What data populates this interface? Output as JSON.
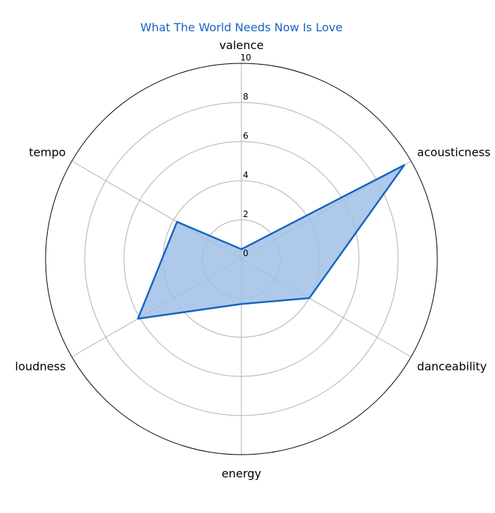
{
  "chart_data": {
    "type": "radar",
    "title": "What The World Needs Now Is Love",
    "axes": [
      "valence",
      "acousticness",
      "danceability",
      "energy",
      "loudness",
      "tempo"
    ],
    "series": [
      {
        "values": [
          0.5,
          9.6,
          4.0,
          2.3,
          6.1,
          3.8
        ]
      }
    ],
    "rlim": [
      0,
      10
    ],
    "rticks": [
      "0",
      "2",
      "4",
      "6",
      "8",
      "10"
    ],
    "grid": true,
    "colors": {
      "line": "#1565c0",
      "fill": "#a0bfe6",
      "title": "#1565c0"
    }
  }
}
